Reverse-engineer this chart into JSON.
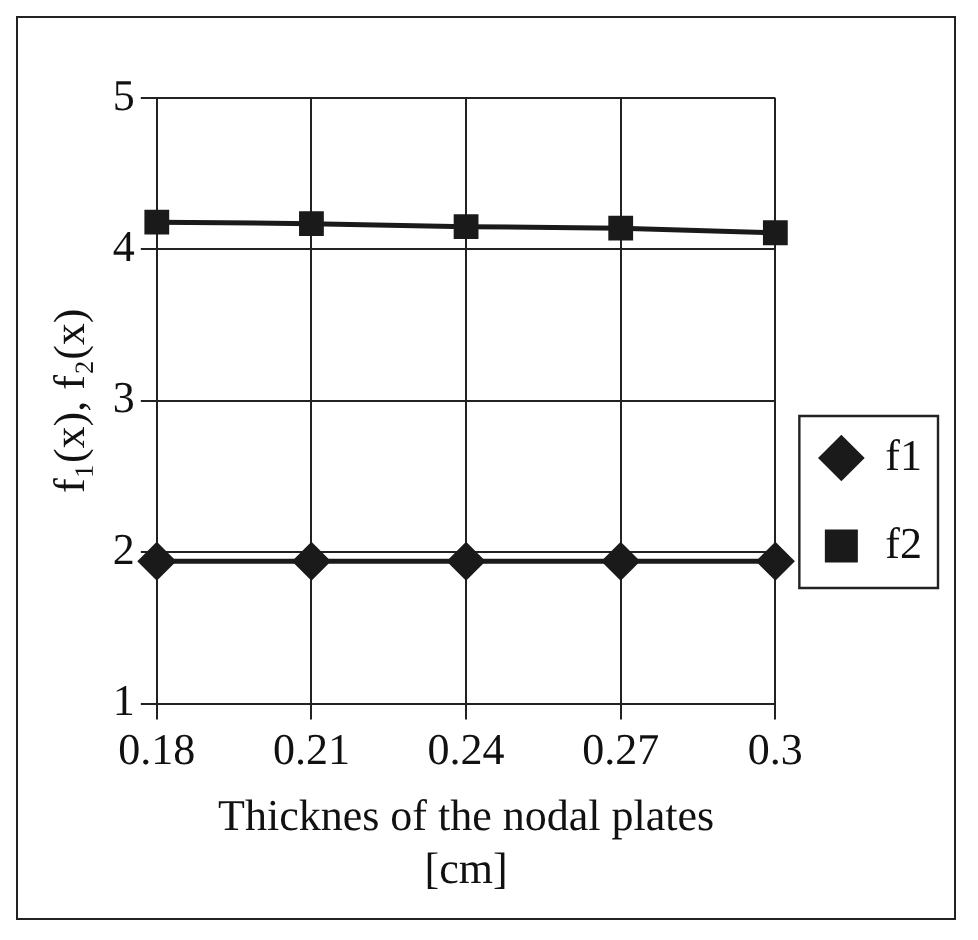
{
  "chart_data": {
    "type": "line",
    "xlabel": "Thicknes of the nodal plates\n[cm]",
    "ylabel": "f₁(x), f₂(x)",
    "categories": [
      "0.18",
      "0.21",
      "0.24",
      "0.27",
      "0.3"
    ],
    "series": [
      {
        "name": "f1",
        "color": "#1a1a1a",
        "marker": "diamond",
        "values": [
          1.94,
          1.94,
          1.94,
          1.94,
          1.94
        ]
      },
      {
        "name": "f2",
        "color": "#1a1a1a",
        "marker": "square",
        "values": [
          4.18,
          4.17,
          4.15,
          4.14,
          4.11
        ]
      }
    ],
    "ylim": [
      1,
      5
    ],
    "yticks": [
      1,
      2,
      3,
      4,
      5
    ],
    "grid": true,
    "legend": "right",
    "line_style": "solid"
  }
}
